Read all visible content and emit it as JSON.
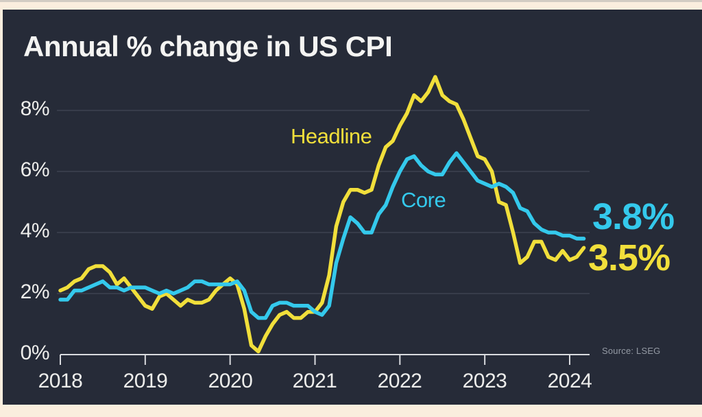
{
  "chart_data": {
    "type": "line",
    "title": "Annual % change in US CPI",
    "source": "Source: LSEG",
    "x_start": "2018-01",
    "x_end": "2024-03",
    "x_freq": "monthly",
    "x_tick_labels": [
      "2018",
      "2019",
      "2020",
      "2021",
      "2022",
      "2023",
      "2024"
    ],
    "y_tick_labels": [
      "8%",
      "6%",
      "4%",
      "2%",
      "0%"
    ],
    "y_tick_values": [
      8,
      6,
      4,
      2,
      0
    ],
    "ylim": [
      0,
      9.3
    ],
    "grid": "horizontal",
    "background_color": "#262B38",
    "frame_color": "#FAEEDE",
    "grid_color": "#3D4350",
    "axis_color": "#D9DBDF",
    "text_color": "#EDEDEB",
    "series": [
      {
        "name": "Headline",
        "color": "#F1DF3B",
        "end_label": "3.5%",
        "values": [
          2.1,
          2.2,
          2.4,
          2.5,
          2.8,
          2.9,
          2.9,
          2.7,
          2.3,
          2.5,
          2.2,
          1.9,
          1.6,
          1.5,
          1.9,
          2.0,
          1.8,
          1.6,
          1.8,
          1.7,
          1.7,
          1.8,
          2.1,
          2.3,
          2.5,
          2.3,
          1.5,
          0.3,
          0.1,
          0.6,
          1.0,
          1.3,
          1.4,
          1.2,
          1.2,
          1.4,
          1.4,
          1.7,
          2.6,
          4.2,
          5.0,
          5.4,
          5.4,
          5.3,
          5.4,
          6.2,
          6.8,
          7.0,
          7.5,
          7.9,
          8.5,
          8.3,
          8.6,
          9.1,
          8.5,
          8.3,
          8.2,
          7.7,
          7.1,
          6.5,
          6.4,
          6.0,
          5.0,
          4.9,
          4.0,
          3.0,
          3.2,
          3.7,
          3.7,
          3.2,
          3.1,
          3.4,
          3.1,
          3.2,
          3.5
        ]
      },
      {
        "name": "Core",
        "color": "#34C9EC",
        "end_label": "3.8%",
        "values": [
          1.8,
          1.8,
          2.1,
          2.1,
          2.2,
          2.3,
          2.4,
          2.2,
          2.2,
          2.1,
          2.2,
          2.2,
          2.2,
          2.1,
          2.0,
          2.1,
          2.0,
          2.1,
          2.2,
          2.4,
          2.4,
          2.3,
          2.3,
          2.3,
          2.3,
          2.4,
          2.1,
          1.4,
          1.2,
          1.2,
          1.6,
          1.7,
          1.7,
          1.6,
          1.6,
          1.6,
          1.4,
          1.3,
          1.6,
          3.0,
          3.8,
          4.5,
          4.3,
          4.0,
          4.0,
          4.6,
          4.9,
          5.5,
          6.0,
          6.4,
          6.5,
          6.2,
          6.0,
          5.9,
          5.9,
          6.3,
          6.6,
          6.3,
          6.0,
          5.7,
          5.6,
          5.5,
          5.6,
          5.5,
          5.3,
          4.8,
          4.7,
          4.3,
          4.1,
          4.0,
          4.0,
          3.9,
          3.9,
          3.8,
          3.8
        ]
      }
    ]
  }
}
